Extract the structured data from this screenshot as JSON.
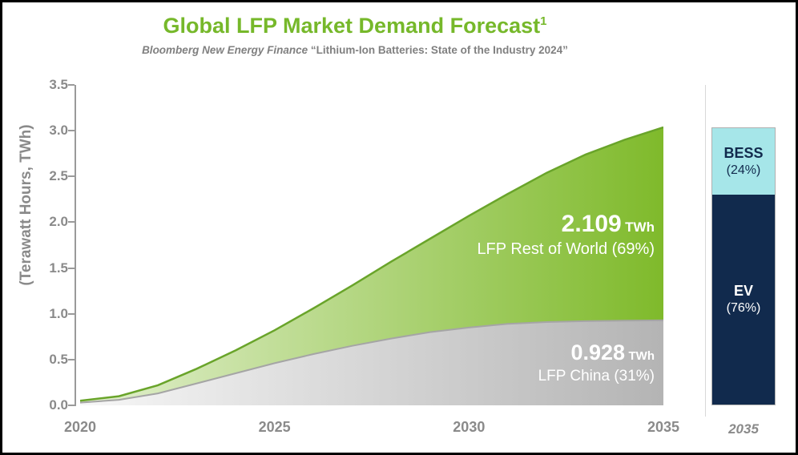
{
  "header": {
    "title": "Global LFP Market Demand Forecast",
    "title_superscript": "1",
    "subtitle_source": "Bloomberg New Energy Finance",
    "subtitle_rest": " “Lithium-Ion Batteries: State of the Industry 2024”"
  },
  "colors": {
    "title_green": "#76b82a",
    "axis_gray": "#8a8a8a",
    "area_green_light": "#e3f0d0",
    "area_green_dark": "#7fba2b",
    "area_green_stroke": "#69a42a",
    "area_gray_light": "#f7f7f7",
    "area_gray_dark": "#b4b4b4",
    "area_gray_stroke": "#a5a5a5",
    "bess_cyan": "#a6e6e9",
    "ev_navy": "#112a4d",
    "annotation_white": "#ffffff"
  },
  "chart_data": {
    "type": "area",
    "title": "Global LFP Market Demand Forecast",
    "subtitle": "Bloomberg New Energy Finance “Lithium-Ion Batteries: State of the Industry 2024”",
    "ylabel": "(Terawatt Hours, TWh)",
    "xlabel": "",
    "ylim": [
      0,
      3.5
    ],
    "grid": false,
    "x": [
      2020,
      2021,
      2022,
      2023,
      2024,
      2025,
      2026,
      2027,
      2028,
      2029,
      2030,
      2031,
      2032,
      2033,
      2034,
      2035
    ],
    "series": [
      {
        "name": "LFP China",
        "values": [
          0.03,
          0.06,
          0.13,
          0.24,
          0.35,
          0.46,
          0.56,
          0.65,
          0.73,
          0.8,
          0.85,
          0.89,
          0.91,
          0.92,
          0.926,
          0.928
        ]
      },
      {
        "name": "LFP Rest of World",
        "values": [
          0.02,
          0.04,
          0.09,
          0.16,
          0.25,
          0.36,
          0.5,
          0.66,
          0.84,
          1.02,
          1.22,
          1.42,
          1.63,
          1.82,
          1.974,
          2.109
        ]
      }
    ],
    "yticks": [
      "0.0",
      "0.5",
      "1.0",
      "1.5",
      "2.0",
      "2.5",
      "3.0",
      "3.5"
    ],
    "xticks": [
      "2020",
      "2025",
      "2030",
      "2035"
    ],
    "annotations": [
      {
        "value": "2.109",
        "unit": "TWh",
        "label": "LFP Rest of World (69%)"
      },
      {
        "value": "0.928",
        "unit": "TWh",
        "label": "LFP China (31%)"
      }
    ]
  },
  "bar": {
    "xtick": "2035",
    "total_twh": 3.037,
    "segments": [
      {
        "name": "BESS",
        "pct_label": "(24%)",
        "fraction": 0.24,
        "color": "#a6e6e9",
        "text_color": "#112a4d"
      },
      {
        "name": "EV",
        "pct_label": "(76%)",
        "fraction": 0.76,
        "color": "#112a4d",
        "text_color": "#ffffff"
      }
    ]
  }
}
